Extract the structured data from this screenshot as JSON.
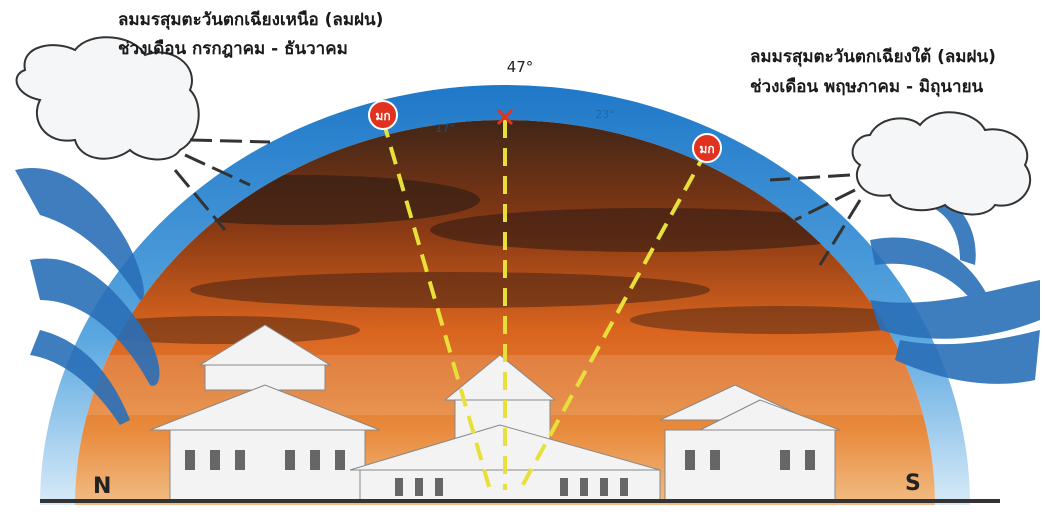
{
  "labels": {
    "north_wind": {
      "line1": "ลมมรสุมตะวันตกเฉียงเหนือ (ลมฝน)",
      "line2": "ช่วงเดือน กรกฎาคม - ธันวาคม"
    },
    "south_wind": {
      "line1": "ลมมรสุมตะวันตกเฉียงใต้ (ลมฝน)",
      "line2": "ช่วงเดือน พฤษภาคม - มิถุนายน"
    },
    "angle_top": "47°",
    "angle_left": "17°",
    "angle_right": "23°",
    "sun_left": "มก",
    "sun_right": "มก",
    "north": "N",
    "south": "S"
  }
}
